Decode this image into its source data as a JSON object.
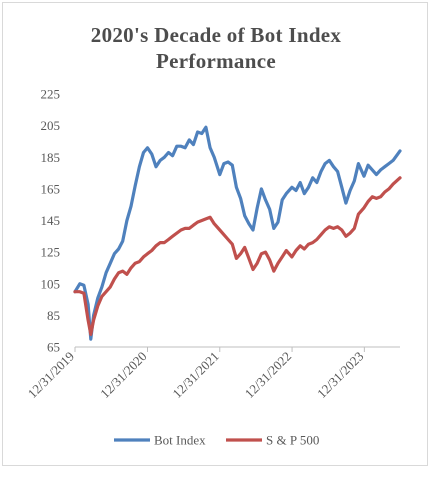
{
  "chart_data": {
    "type": "line",
    "title_lines": [
      "2020's Decade of Bot Index",
      "Performance"
    ],
    "xlabel": "",
    "ylabel": "",
    "ylim": [
      65,
      225
    ],
    "yticks": [
      65,
      85,
      105,
      125,
      145,
      165,
      185,
      205,
      225
    ],
    "xlim": [
      "2019-12-31",
      "2024-06-28"
    ],
    "xticks": [
      "12/31/2019",
      "12/31/2020",
      "12/31/2021",
      "12/31/2022",
      "12/31/2023"
    ],
    "grid": false,
    "legend": "bottom",
    "x": [
      "2019-12-31",
      "2020-01-24",
      "2020-02-14",
      "2020-03-06",
      "2020-03-20",
      "2020-04-03",
      "2020-04-24",
      "2020-05-15",
      "2020-06-05",
      "2020-06-26",
      "2020-07-17",
      "2020-08-07",
      "2020-08-28",
      "2020-09-18",
      "2020-10-09",
      "2020-10-30",
      "2020-11-20",
      "2020-12-11",
      "2020-12-31",
      "2021-01-22",
      "2021-02-12",
      "2021-03-05",
      "2021-03-26",
      "2021-04-16",
      "2021-05-07",
      "2021-05-28",
      "2021-06-18",
      "2021-07-09",
      "2021-07-30",
      "2021-08-20",
      "2021-09-10",
      "2021-10-01",
      "2021-10-22",
      "2021-11-12",
      "2021-12-03",
      "2021-12-31",
      "2022-01-21",
      "2022-02-11",
      "2022-03-04",
      "2022-03-25",
      "2022-04-15",
      "2022-05-06",
      "2022-05-27",
      "2022-06-17",
      "2022-07-08",
      "2022-07-29",
      "2022-08-19",
      "2022-09-09",
      "2022-09-30",
      "2022-10-21",
      "2022-11-11",
      "2022-12-02",
      "2022-12-30",
      "2023-01-20",
      "2023-02-10",
      "2023-03-03",
      "2023-03-24",
      "2023-04-14",
      "2023-05-05",
      "2023-05-26",
      "2023-06-16",
      "2023-07-07",
      "2023-07-28",
      "2023-08-18",
      "2023-09-08",
      "2023-09-29",
      "2023-10-20",
      "2023-11-10",
      "2023-12-01",
      "2023-12-29",
      "2024-01-19",
      "2024-02-09",
      "2024-03-01",
      "2024-03-22",
      "2024-04-12",
      "2024-05-03",
      "2024-05-24",
      "2024-06-28"
    ],
    "series": [
      {
        "name": "Bot Index",
        "color": "#4f81bd",
        "values": [
          100,
          105,
          104,
          92,
          70,
          85,
          96,
          103,
          112,
          118,
          124,
          127,
          132,
          145,
          154,
          167,
          179,
          188,
          191,
          187,
          179,
          183,
          185,
          188,
          186,
          192,
          192,
          191,
          196,
          193,
          201,
          200,
          204,
          191,
          185,
          174,
          181,
          182,
          180,
          166,
          159,
          148,
          143,
          139,
          153,
          165,
          158,
          152,
          140,
          144,
          158,
          162,
          166,
          164,
          169,
          162,
          166,
          172,
          169,
          176,
          181,
          183,
          179,
          176,
          166,
          156,
          164,
          170,
          181,
          173,
          180,
          177,
          174,
          177,
          179,
          181,
          183,
          189
        ]
      },
      {
        "name": "S & P 500",
        "color": "#c0504d",
        "values": [
          100,
          100,
          99,
          82,
          73,
          82,
          91,
          97,
          100,
          103,
          108,
          112,
          113,
          111,
          115,
          118,
          119,
          122,
          124,
          126,
          129,
          131,
          131,
          133,
          135,
          137,
          139,
          140,
          140,
          142,
          144,
          145,
          146,
          147,
          143,
          139,
          136,
          133,
          130,
          121,
          124,
          128,
          121,
          114,
          118,
          124,
          125,
          120,
          113,
          118,
          122,
          126,
          122,
          126,
          129,
          127,
          130,
          131,
          133,
          136,
          139,
          141,
          140,
          141,
          139,
          135,
          137,
          140,
          149,
          153,
          157,
          160,
          159,
          160,
          163,
          165,
          168,
          172
        ]
      }
    ]
  }
}
